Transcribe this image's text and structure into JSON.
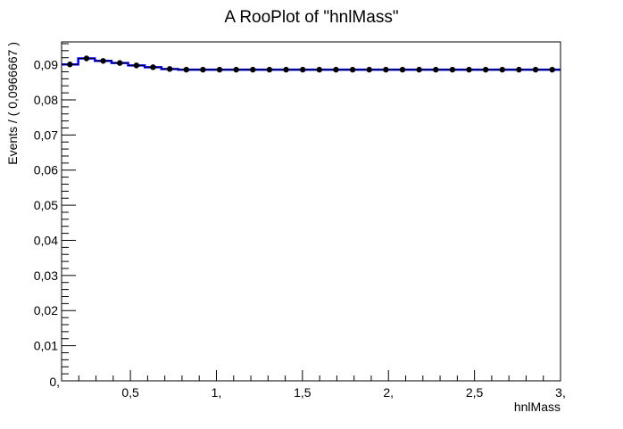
{
  "chart_data": {
    "type": "line",
    "title": "A RooPlot of \"hnlMass\"",
    "xlabel": "hnlMass",
    "ylabel": "Events / ( 0,0966667 )",
    "xlim": [
      0.1,
      3.0
    ],
    "ylim": [
      0,
      0.0965
    ],
    "x_ticks": [
      {
        "value": 0.5,
        "label": "0,5"
      },
      {
        "value": 1.0,
        "label": "1,"
      },
      {
        "value": 1.5,
        "label": "1,5"
      },
      {
        "value": 2.0,
        "label": "2,"
      },
      {
        "value": 2.5,
        "label": "2,5"
      },
      {
        "value": 3.0,
        "label": "3,"
      }
    ],
    "x_corner_label": "0,",
    "y_ticks": [
      {
        "value": 0.01,
        "label": "0,01"
      },
      {
        "value": 0.02,
        "label": "0,02"
      },
      {
        "value": 0.03,
        "label": "0,03"
      },
      {
        "value": 0.04,
        "label": "0,04"
      },
      {
        "value": 0.05,
        "label": "0,05"
      },
      {
        "value": 0.06,
        "label": "0,06"
      },
      {
        "value": 0.07,
        "label": "0,07"
      },
      {
        "value": 0.08,
        "label": "0,08"
      },
      {
        "value": 0.09,
        "label": "0,09"
      }
    ],
    "bin_edges": [
      0.1,
      0.196667,
      0.293333,
      0.39,
      0.486667,
      0.583333,
      0.68,
      0.776667,
      0.873333,
      0.97,
      1.066667,
      1.163333,
      1.26,
      1.356667,
      1.453333,
      1.55,
      1.646667,
      1.743333,
      1.84,
      1.936667,
      2.033333,
      2.13,
      2.226667,
      2.323333,
      2.42,
      2.516667,
      2.613333,
      2.71,
      2.806667,
      2.903333,
      3.0
    ],
    "series": [
      {
        "kind": "points",
        "x": [
          0.148333,
          0.245,
          0.341667,
          0.438333,
          0.535,
          0.631667,
          0.728333,
          0.825,
          0.921667,
          1.018333,
          1.115,
          1.211667,
          1.308333,
          1.405,
          1.501667,
          1.598333,
          1.695,
          1.791667,
          1.888333,
          1.985,
          2.081667,
          2.178333,
          2.275,
          2.371667,
          2.468333,
          2.565,
          2.661667,
          2.758333,
          2.855,
          2.951667
        ],
        "y": [
          0.0901,
          0.0918,
          0.0911,
          0.0905,
          0.0898,
          0.0893,
          0.0888,
          0.0886,
          0.0886,
          0.0886,
          0.0886,
          0.0886,
          0.0886,
          0.0886,
          0.0886,
          0.0886,
          0.0886,
          0.0886,
          0.0886,
          0.0886,
          0.0886,
          0.0886,
          0.0886,
          0.0886,
          0.0886,
          0.0886,
          0.0886,
          0.0886,
          0.0886,
          0.0886
        ],
        "color": "#000000"
      },
      {
        "kind": "step",
        "y": [
          0.0901,
          0.0918,
          0.0911,
          0.0905,
          0.0898,
          0.0893,
          0.0888,
          0.0886,
          0.0886,
          0.0886,
          0.0886,
          0.0886,
          0.0886,
          0.0886,
          0.0886,
          0.0886,
          0.0886,
          0.0886,
          0.0886,
          0.0886,
          0.0886,
          0.0886,
          0.0886,
          0.0886,
          0.0886,
          0.0886,
          0.0886,
          0.0886,
          0.0886,
          0.0886
        ],
        "color": "#0000ff"
      }
    ],
    "grid": false,
    "legend": "none"
  }
}
